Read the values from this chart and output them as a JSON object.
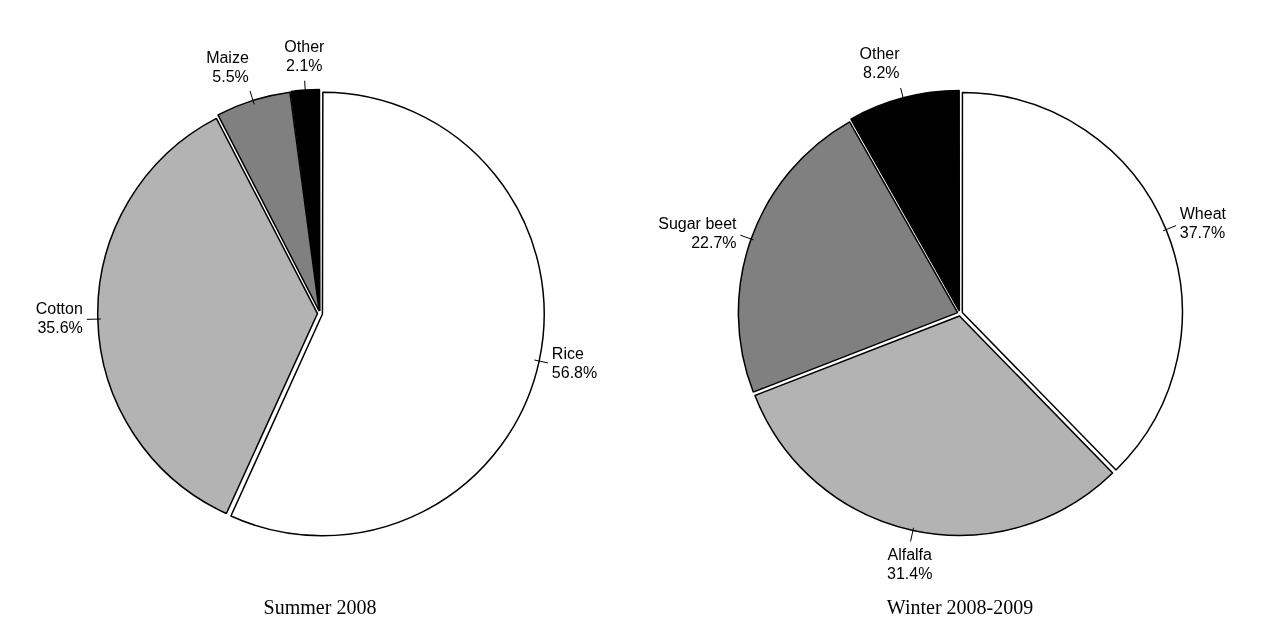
{
  "chart_data": [
    {
      "type": "pie",
      "title": "Summer 2008",
      "categories": [
        "Rice",
        "Cotton",
        "Maize",
        "Other"
      ],
      "values": [
        56.8,
        35.6,
        5.5,
        2.1
      ],
      "value_labels": [
        "56.8%",
        "35.6%",
        "5.5%",
        "2.1%"
      ],
      "colors": [
        "#ffffff",
        "#b3b3b3",
        "#808080",
        "#000000"
      ],
      "legend": false
    },
    {
      "type": "pie",
      "title": "Winter 2008-2009",
      "categories": [
        "Wheat",
        "Alfalfa",
        "Sugar beet",
        "Other"
      ],
      "values": [
        37.7,
        31.4,
        22.7,
        8.2
      ],
      "value_labels": [
        "37.7%",
        "31.4%",
        "22.7%",
        "8.2%"
      ],
      "colors": [
        "#ffffff",
        "#b3b3b3",
        "#808080",
        "#000000"
      ],
      "legend": false
    }
  ]
}
